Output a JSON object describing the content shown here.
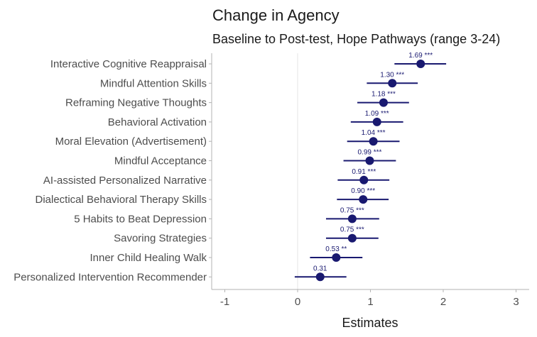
{
  "chart_data": {
    "type": "forest",
    "title": "Change in Agency",
    "subtitle": "Baseline to Post-test, Hope Pathways (range 3-24)",
    "xlabel": "Estimates",
    "xlim": [
      -1.2,
      3.2
    ],
    "xticks": [
      -1,
      0,
      1,
      2,
      3
    ],
    "zero_line": true,
    "grid": false,
    "color": "#191970",
    "categories": [
      "Interactive Cognitive Reappraisal",
      "Mindful Attention Skills",
      "Reframing Negative Thoughts",
      "Behavioral Activation",
      "Moral Elevation (Advertisement)",
      "Mindful Acceptance",
      "AI-assisted Personalized Narrative",
      "Dialectical Behavioral Therapy Skills",
      "5 Habits to Beat Depression",
      "Savoring Strategies",
      "Inner Child Healing Walk",
      "Personalized Intervention Recommender"
    ],
    "estimates": [
      1.69,
      1.3,
      1.18,
      1.09,
      1.04,
      0.99,
      0.91,
      0.9,
      0.75,
      0.75,
      0.53,
      0.31
    ],
    "ci_low": [
      1.33,
      0.95,
      0.82,
      0.73,
      0.68,
      0.63,
      0.55,
      0.54,
      0.39,
      0.39,
      0.17,
      -0.04
    ],
    "ci_high": [
      2.04,
      1.65,
      1.53,
      1.45,
      1.4,
      1.35,
      1.26,
      1.25,
      1.12,
      1.11,
      0.89,
      0.67
    ],
    "labels": [
      "1.69 ***",
      "1.30 ***",
      "1.18 ***",
      "1.09 ***",
      "1.04 ***",
      "0.99 ***",
      "0.91 ***",
      "0.90 ***",
      "0.75 ***",
      "0.75 ***",
      "0.53 **",
      "0.31"
    ]
  }
}
